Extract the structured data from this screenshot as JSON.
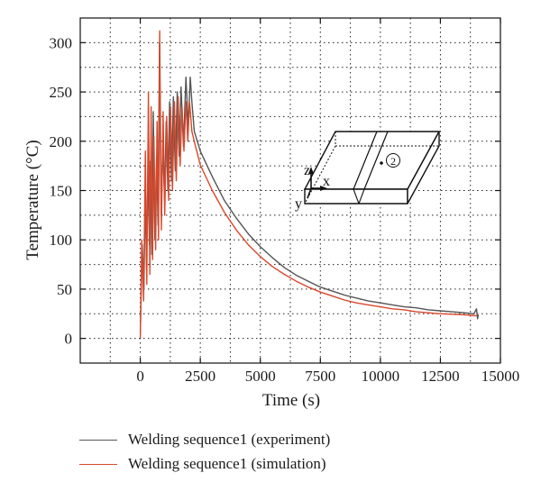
{
  "chart_data": {
    "type": "line",
    "title": "",
    "xlabel": "Time (s)",
    "ylabel": "Temperature (°C)",
    "xlim": [
      -2500,
      15000
    ],
    "ylim": [
      -25,
      325
    ],
    "xticks": [
      0,
      2500,
      5000,
      7500,
      10000,
      12500,
      15000
    ],
    "yticks": [
      0,
      50,
      100,
      150,
      200,
      250,
      300
    ],
    "grid": true,
    "legend_position": "bottom",
    "series": [
      {
        "name": "Welding sequence1 (experiment)",
        "color": "#555555",
        "points": [
          [
            0,
            5
          ],
          [
            80,
            95
          ],
          [
            150,
            50
          ],
          [
            210,
            150
          ],
          [
            260,
            70
          ],
          [
            320,
            175
          ],
          [
            380,
            95
          ],
          [
            420,
            180
          ],
          [
            480,
            85
          ],
          [
            540,
            230
          ],
          [
            610,
            100
          ],
          [
            680,
            185
          ],
          [
            740,
            115
          ],
          [
            800,
            300
          ],
          [
            870,
            125
          ],
          [
            940,
            195
          ],
          [
            1010,
            140
          ],
          [
            1080,
            220
          ],
          [
            1150,
            150
          ],
          [
            1220,
            240
          ],
          [
            1300,
            160
          ],
          [
            1380,
            245
          ],
          [
            1460,
            170
          ],
          [
            1540,
            250
          ],
          [
            1620,
            185
          ],
          [
            1700,
            255
          ],
          [
            1800,
            195
          ],
          [
            1900,
            265
          ],
          [
            2000,
            215
          ],
          [
            2080,
            265
          ],
          [
            2150,
            240
          ],
          [
            2250,
            210
          ],
          [
            2500,
            190
          ],
          [
            3000,
            164
          ],
          [
            3500,
            140
          ],
          [
            4000,
            122
          ],
          [
            4500,
            106
          ],
          [
            5000,
            93
          ],
          [
            5500,
            82
          ],
          [
            6000,
            72
          ],
          [
            6500,
            64
          ],
          [
            7000,
            58
          ],
          [
            7500,
            52
          ],
          [
            8000,
            48
          ],
          [
            8500,
            44
          ],
          [
            9000,
            41
          ],
          [
            9500,
            38
          ],
          [
            10000,
            36
          ],
          [
            10500,
            34
          ],
          [
            11000,
            32
          ],
          [
            11500,
            31
          ],
          [
            12000,
            29
          ],
          [
            12500,
            28
          ],
          [
            13000,
            27
          ],
          [
            13500,
            26
          ],
          [
            13900,
            25
          ],
          [
            14000,
            30
          ],
          [
            14050,
            20
          ],
          [
            14080,
            24
          ]
        ]
      },
      {
        "name": "Welding sequence1 (simulation)",
        "color": "#d9482b",
        "points": [
          [
            0,
            0
          ],
          [
            60,
            100
          ],
          [
            140,
            38
          ],
          [
            210,
            190
          ],
          [
            270,
            55
          ],
          [
            340,
            250
          ],
          [
            400,
            65
          ],
          [
            450,
            235
          ],
          [
            510,
            80
          ],
          [
            570,
            205
          ],
          [
            640,
            90
          ],
          [
            700,
            220
          ],
          [
            760,
            100
          ],
          [
            810,
            312
          ],
          [
            880,
            110
          ],
          [
            950,
            230
          ],
          [
            1020,
            125
          ],
          [
            1100,
            225
          ],
          [
            1180,
            140
          ],
          [
            1260,
            235
          ],
          [
            1340,
            150
          ],
          [
            1420,
            240
          ],
          [
            1500,
            160
          ],
          [
            1580,
            245
          ],
          [
            1660,
            175
          ],
          [
            1740,
            235
          ],
          [
            1820,
            190
          ],
          [
            1900,
            240
          ],
          [
            1980,
            200
          ],
          [
            2050,
            240
          ],
          [
            2150,
            210
          ],
          [
            2300,
            195
          ],
          [
            2500,
            176
          ],
          [
            3000,
            150
          ],
          [
            3500,
            128
          ],
          [
            4000,
            110
          ],
          [
            4500,
            95
          ],
          [
            5000,
            83
          ],
          [
            5500,
            73
          ],
          [
            6000,
            65
          ],
          [
            6500,
            58
          ],
          [
            7000,
            52
          ],
          [
            7500,
            47
          ],
          [
            8000,
            43
          ],
          [
            8500,
            39
          ],
          [
            9000,
            36
          ],
          [
            9500,
            34
          ],
          [
            10000,
            32
          ],
          [
            10500,
            30
          ],
          [
            11000,
            29
          ],
          [
            11500,
            27
          ],
          [
            12000,
            26
          ],
          [
            12500,
            25
          ],
          [
            13000,
            24.5
          ],
          [
            13500,
            24
          ],
          [
            14000,
            23
          ]
        ]
      }
    ],
    "inset": {
      "description_labels": [
        "z",
        "x",
        "y",
        "2"
      ]
    }
  }
}
